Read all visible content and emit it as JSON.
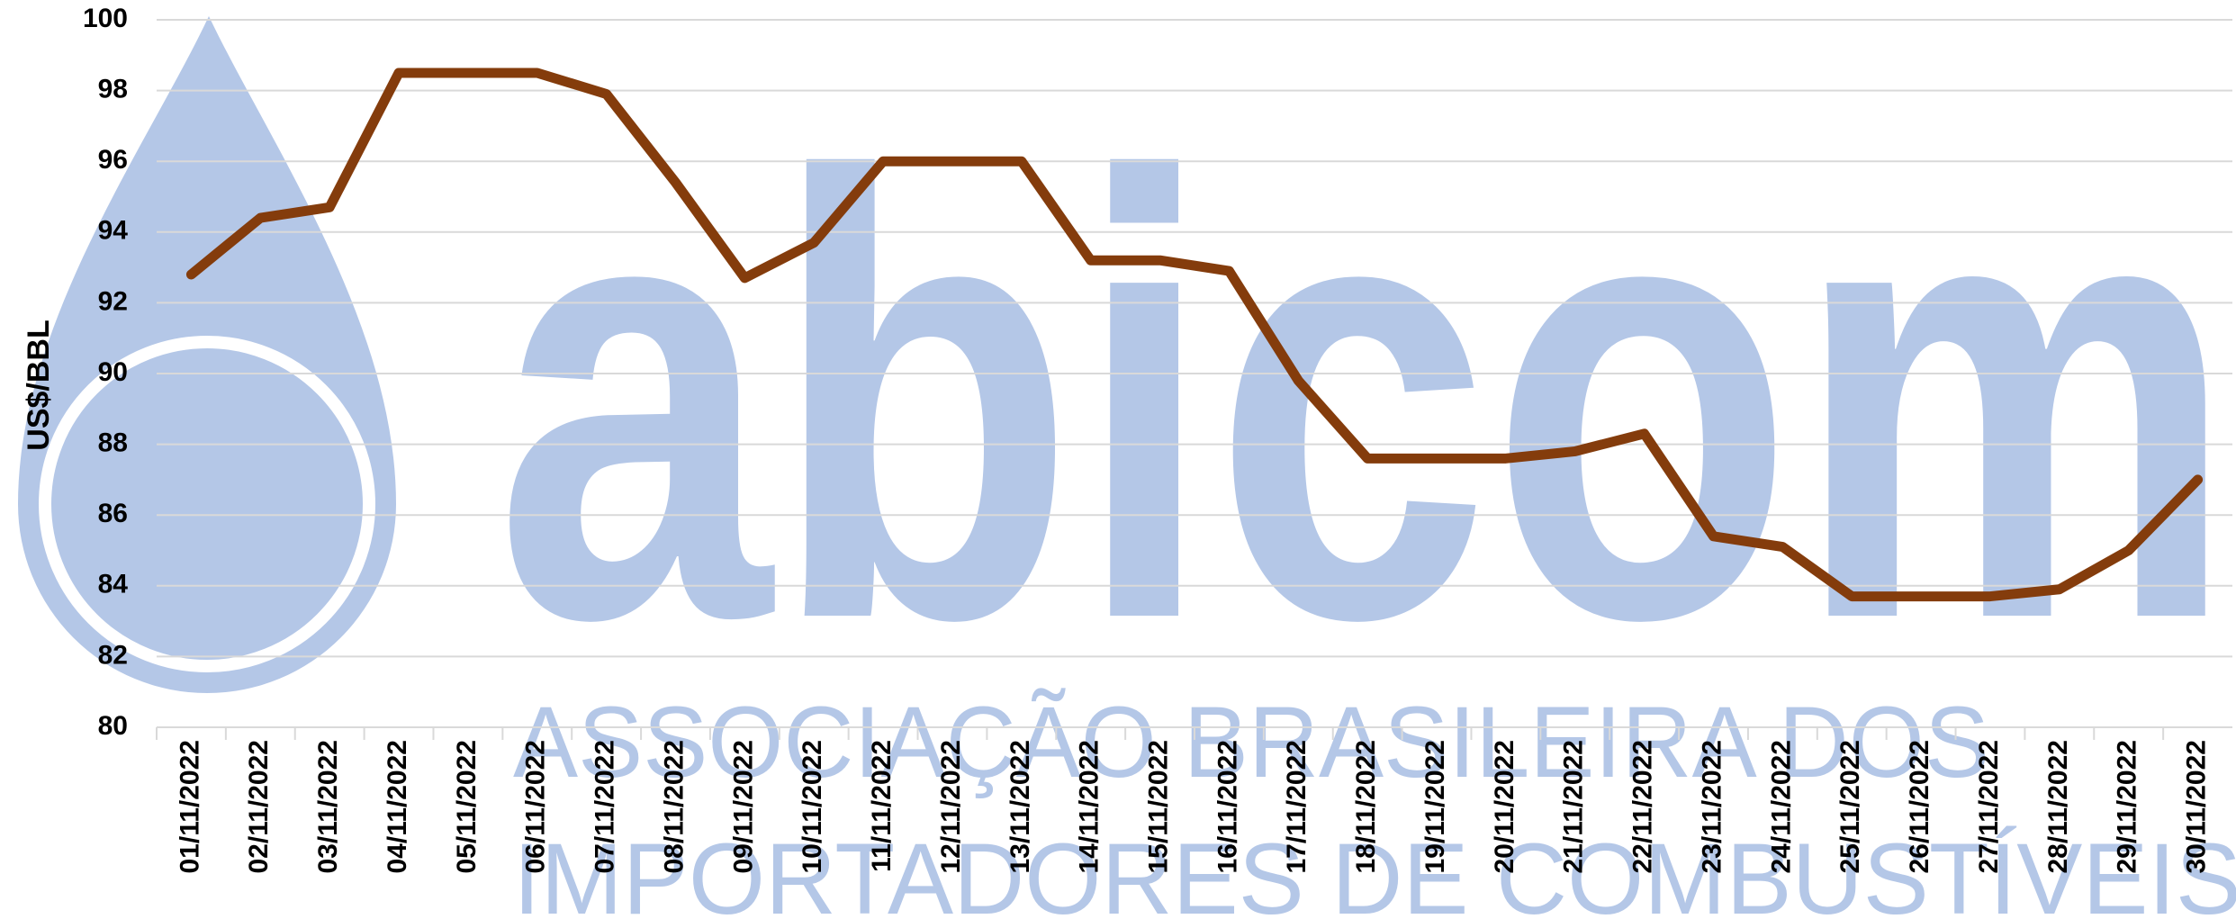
{
  "chart_data": {
    "type": "line",
    "y_label": "US$/BBL",
    "watermark": {
      "brand": "abicom",
      "lines": [
        "ASSOCIAÇÃO BRASILEIRA DOS",
        "IMPORTADORES DE COMBUSTÍVEIS"
      ]
    },
    "categories": [
      "01/11/2022",
      "02/11/2022",
      "03/11/2022",
      "04/11/2022",
      "05/11/2022",
      "06/11/2022",
      "07/11/2022",
      "08/11/2022",
      "09/11/2022",
      "10/11/2022",
      "11/11/2022",
      "12/11/2022",
      "13/11/2022",
      "14/11/2022",
      "15/11/2022",
      "16/11/2022",
      "17/11/2022",
      "18/11/2022",
      "19/11/2022",
      "20/11/2022",
      "21/11/2022",
      "22/11/2022",
      "23/11/2022",
      "24/11/2022",
      "25/11/2022",
      "26/11/2022",
      "27/11/2022",
      "28/11/2022",
      "29/11/2022",
      "30/11/2022"
    ],
    "values": [
      92.8,
      94.4,
      94.7,
      98.5,
      98.5,
      98.5,
      97.9,
      95.4,
      92.7,
      93.7,
      96.0,
      96.0,
      96.0,
      93.2,
      93.2,
      92.9,
      89.8,
      87.6,
      87.6,
      87.6,
      87.8,
      88.3,
      85.4,
      85.1,
      83.7,
      83.7,
      83.7,
      83.9,
      85.0,
      87.0
    ],
    "color": "#843c0c",
    "ylim": [
      80,
      100
    ],
    "yticks": [
      80,
      82,
      84,
      86,
      88,
      90,
      92,
      94,
      96,
      98,
      100
    ],
    "grid": true
  }
}
